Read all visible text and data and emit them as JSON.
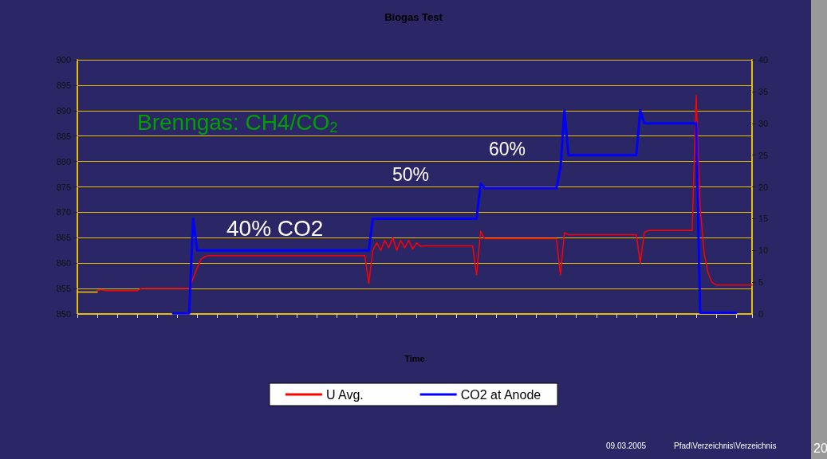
{
  "chart_data": {
    "type": "line",
    "title": "Biogas Test",
    "xlabel": "Time",
    "categories": [
      null,
      null,
      null,
      null,
      null,
      null,
      null,
      null,
      null,
      null,
      null,
      null,
      null,
      null,
      null,
      null,
      null,
      null,
      null,
      null,
      null,
      null,
      null,
      null,
      null,
      null,
      null,
      null,
      null,
      null,
      null,
      null,
      null,
      null,
      null,
      null,
      null,
      null,
      null,
      null,
      null,
      null,
      null,
      null,
      null,
      null,
      null,
      null,
      null,
      null,
      null,
      null,
      null,
      null,
      null,
      null,
      null,
      null,
      null,
      null,
      null,
      null,
      null,
      null,
      null,
      null,
      null,
      null,
      null,
      null,
      null,
      null,
      null,
      null,
      null,
      null,
      null,
      null,
      null,
      null,
      null,
      null,
      null,
      null,
      null,
      null,
      null,
      null,
      null,
      null,
      null,
      null,
      null,
      null,
      null,
      null,
      null,
      null,
      null,
      null,
      null,
      null,
      null,
      null,
      null,
      null,
      null,
      null,
      null,
      null,
      null,
      null,
      null,
      null,
      null,
      null,
      null,
      null,
      null,
      null,
      null,
      null,
      null,
      null,
      null,
      null,
      null,
      null,
      null,
      null,
      null,
      null,
      null,
      null,
      null,
      null,
      null,
      null,
      null,
      null,
      null,
      null,
      null,
      null,
      null,
      null,
      null,
      null,
      null,
      null,
      null,
      null,
      null,
      null,
      null,
      null,
      null,
      null,
      null,
      null,
      null,
      null,
      null,
      null,
      null,
      null,
      null,
      null,
      null,
      null
    ],
    "series": [
      {
        "name": "U Avg.",
        "color": "#ff0000",
        "values": [
          null,
          null,
          null,
          null,
          null,
          854.6,
          854.8,
          854.6,
          854.6,
          854.6,
          854.6,
          854.6,
          854.6,
          854.6,
          854.6,
          854.6,
          855.0,
          855.0,
          855.0,
          855.0,
          855.0,
          855.0,
          855.0,
          855.0,
          855.0,
          855.0,
          855.0,
          855.0,
          855.0,
          857,
          859,
          860.8,
          861.3,
          861.5,
          861.5,
          861.5,
          861.5,
          861.5,
          861.5,
          861.5,
          861.5,
          861.5,
          861.5,
          861.5,
          861.5,
          861.5,
          861.5,
          861.5,
          861.5,
          861.5,
          861.5,
          861.5,
          861.5,
          861.5,
          861.5,
          861.5,
          861.5,
          861.5,
          861.5,
          861.5,
          861.5,
          861.5,
          861.5,
          861.5,
          861.5,
          861.5,
          861.5,
          861.5,
          861.5,
          861.5,
          861.5,
          861.5,
          861.5,
          856,
          862.5,
          864,
          862.5,
          864.5,
          863,
          865,
          862.5,
          864.5,
          863,
          864.5,
          862.8,
          864,
          863.3,
          863.4,
          863.4,
          863.4,
          863.4,
          863.4,
          863.4,
          863.4,
          863.4,
          863.4,
          863.4,
          863.4,
          863.4,
          863.4,
          857.7,
          866.3,
          864.8,
          864.8,
          864.8,
          864.8,
          864.8,
          864.8,
          864.8,
          864.8,
          864.8,
          864.8,
          864.8,
          864.8,
          864.8,
          864.8,
          864.8,
          864.8,
          864.8,
          864.8,
          864.8,
          857.7,
          866,
          865.6,
          865.6,
          865.6,
          865.6,
          865.6,
          865.6,
          865.6,
          865.6,
          865.6,
          865.6,
          865.6,
          865.6,
          865.6,
          865.6,
          865.6,
          865.6,
          865.6,
          865.6,
          860,
          866,
          866.4,
          866.4,
          866.4,
          866.4,
          866.4,
          866.4,
          866.4,
          866.4,
          866.4,
          866.4,
          866.4,
          866.4,
          893,
          871,
          862,
          858,
          856.2,
          855.7,
          855.7,
          855.7,
          855.7,
          855.7,
          855.7,
          855.7,
          855.7,
          855.7,
          855.7
        ]
      },
      {
        "name": "CO2 at Anode",
        "color": "#0000ff",
        "axis": "y2",
        "values": [
          null,
          null,
          null,
          null,
          null,
          null,
          null,
          null,
          null,
          null,
          null,
          null,
          null,
          null,
          null,
          null,
          null,
          null,
          null,
          null,
          null,
          null,
          null,
          null,
          0.1,
          0.1,
          0.1,
          0.1,
          0.1,
          15,
          10,
          10,
          10,
          10,
          10,
          10,
          10,
          10,
          10,
          10,
          10,
          10,
          10,
          10,
          10,
          10,
          10,
          10,
          10,
          10,
          10,
          10,
          10,
          10,
          10,
          10,
          10,
          10,
          10,
          10,
          10,
          10,
          10,
          10,
          10,
          10,
          10,
          10,
          10,
          10,
          10,
          10,
          10,
          10,
          15,
          15,
          15,
          15,
          15,
          15,
          15,
          15,
          15,
          15,
          15,
          15,
          15,
          15,
          15,
          15,
          15,
          15,
          15,
          15,
          15,
          15,
          15,
          15,
          15,
          15,
          15,
          20.5,
          19.8,
          19.8,
          19.8,
          19.8,
          19.8,
          19.8,
          19.8,
          19.8,
          19.8,
          19.8,
          19.8,
          19.8,
          19.8,
          19.8,
          19.8,
          19.8,
          19.8,
          19.8,
          19.8,
          23,
          32,
          25,
          25,
          25,
          25,
          25,
          25,
          25,
          25,
          25,
          25,
          25,
          25,
          25,
          25,
          25,
          25,
          25,
          25,
          32,
          30,
          30,
          30,
          30,
          30,
          30,
          30,
          30,
          30,
          30,
          30,
          30,
          30,
          30,
          0.2,
          0.2,
          0.2,
          0.2,
          0.2,
          0.2,
          0.2,
          0.2,
          0.2,
          0.2,
          null,
          null,
          null,
          null
        ]
      },
      {
        "color": "#ffcc00",
        "values": [
          854.3,
          854.3,
          854.3,
          854.3,
          854.3,
          854.3,
          null,
          null,
          null,
          null,
          null,
          null,
          null,
          null,
          null,
          null,
          null,
          null,
          null,
          null,
          null,
          null,
          null,
          null,
          null,
          null,
          null,
          null,
          null,
          null,
          null,
          null,
          null,
          null,
          null,
          null,
          null,
          null,
          null,
          null,
          null,
          null,
          null,
          null,
          null,
          null,
          null,
          null,
          null,
          null,
          null,
          null,
          null,
          null,
          null,
          null,
          null,
          null,
          null,
          null,
          null,
          null,
          null,
          null,
          null,
          null,
          null,
          null,
          null,
          null,
          null,
          null,
          null,
          null,
          null,
          null,
          null,
          null,
          null,
          null,
          null,
          null,
          null,
          null,
          null,
          null,
          null,
          null,
          null,
          null,
          null,
          null,
          null,
          null,
          null,
          null,
          null,
          null,
          null,
          null,
          null,
          null,
          null,
          null,
          null,
          null,
          null,
          null,
          null,
          null,
          null,
          null,
          null,
          null,
          null,
          null,
          null,
          null,
          null,
          null,
          null,
          null,
          null,
          null,
          null,
          null,
          null,
          null,
          null,
          null,
          null,
          null,
          null,
          null,
          null,
          null,
          null,
          null,
          null,
          null,
          null,
          null,
          null,
          null,
          null,
          null,
          null,
          null,
          null,
          null,
          null,
          null,
          null,
          null,
          null,
          null,
          null,
          null,
          null,
          null,
          null,
          null,
          null,
          null,
          null,
          null,
          null,
          null,
          null,
          null
        ]
      }
    ],
    "ylim": [
      850,
      900
    ],
    "yticks": [
      850,
      855,
      860,
      865,
      870,
      875,
      880,
      885,
      890,
      895,
      900
    ],
    "y2lim": [
      0,
      40
    ],
    "y2ticks": [
      0,
      5,
      10,
      15,
      20,
      25,
      30,
      35,
      40
    ],
    "grid": "y",
    "legend": "bottom",
    "line_style": "solid",
    "tick_labels": "y",
    "annotations": [
      "Brenngas: CH4/CO$_{2}$",
      "40% CO2",
      "50%",
      "60%",
      "09.03.2005",
      "Pfad\\Verzeichnis\\Verzeichnis",
      "20"
    ]
  }
}
